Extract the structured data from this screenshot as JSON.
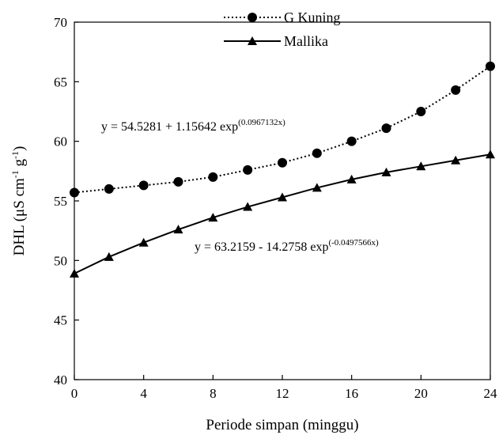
{
  "chart_data": {
    "type": "line",
    "title": "",
    "xlabel": "Periode simpan (minggu)",
    "ylabel": {
      "prefix": "DHL (μS cm",
      "exp1": "-1",
      "mid": " g",
      "exp2": "-1",
      "suffix": ")"
    },
    "xlim": [
      0,
      24
    ],
    "ylim": [
      40,
      70
    ],
    "xticks": [
      0,
      4,
      8,
      12,
      16,
      20,
      24
    ],
    "yticks": [
      40,
      45,
      50,
      55,
      60,
      65,
      70
    ],
    "grid": false,
    "legend_position": "top-center",
    "x": [
      0,
      2,
      4,
      6,
      8,
      10,
      12,
      14,
      16,
      18,
      20,
      22,
      24
    ],
    "series": [
      {
        "name": "G Kuning",
        "marker": "circle",
        "line_style": "dotted",
        "color": "#000000",
        "values": [
          55.7,
          56.0,
          56.3,
          56.6,
          57.0,
          57.6,
          58.2,
          59.0,
          60.0,
          61.1,
          62.5,
          64.3,
          66.3
        ],
        "equation": {
          "base": "y = 54.5281 + 1.15642 exp",
          "exponent": "(0.0967132x)"
        }
      },
      {
        "name": "Mallika",
        "marker": "triangle",
        "line_style": "solid",
        "color": "#000000",
        "values": [
          48.9,
          50.3,
          51.5,
          52.6,
          53.6,
          54.5,
          55.3,
          56.1,
          56.8,
          57.4,
          57.9,
          58.4,
          58.9
        ],
        "equation": {
          "base": "y = 63.2159 - 14.2758 exp",
          "exponent": "(-0.0497566x)"
        }
      }
    ]
  }
}
